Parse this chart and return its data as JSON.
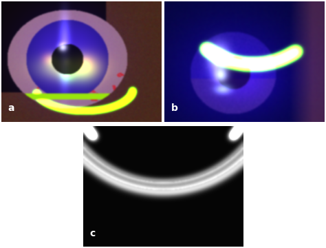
{
  "figure_bg": "#ffffff",
  "panel_a": {
    "label": "a",
    "label_color": "#ffffff"
  },
  "panel_b": {
    "label": "b",
    "label_color": "#ffffff"
  },
  "panel_c": {
    "label": "c",
    "label_color": "#ffffff"
  },
  "label_fontsize": 10,
  "label_weight": "bold"
}
